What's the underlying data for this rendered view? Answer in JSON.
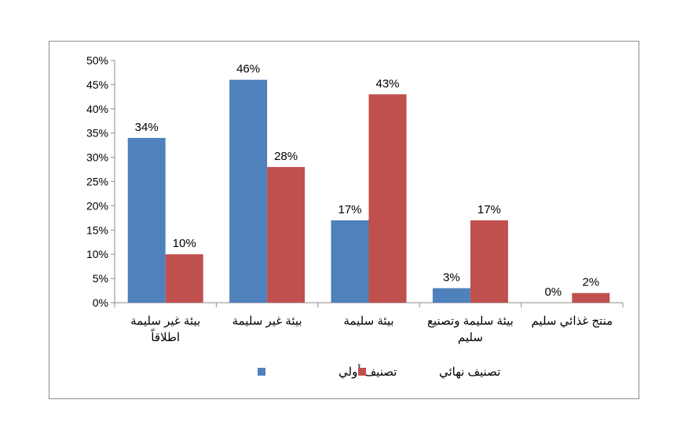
{
  "chart_data": {
    "type": "bar",
    "categories": [
      [
        "بيئة غير سليمة",
        "اطلاقاً"
      ],
      [
        "بيئة غير سليمة"
      ],
      [
        "بيئة سليمة"
      ],
      [
        "بيئة سليمة وتصنيع",
        "سليم"
      ],
      [
        "منتج غذائي سليم"
      ]
    ],
    "series": [
      {
        "name": "تصنيف أولي",
        "color": "#4f81bd",
        "values": [
          34,
          46,
          17,
          3,
          0
        ]
      },
      {
        "name": "تصنيف نهائي",
        "color": "#c0504d",
        "values": [
          10,
          28,
          43,
          17,
          2
        ]
      }
    ],
    "ylim": [
      0,
      50
    ],
    "yticks": [
      0,
      5,
      10,
      15,
      20,
      25,
      30,
      35,
      40,
      45,
      50
    ],
    "value_suffix": "%",
    "grid": false,
    "legend_position": "bottom"
  }
}
